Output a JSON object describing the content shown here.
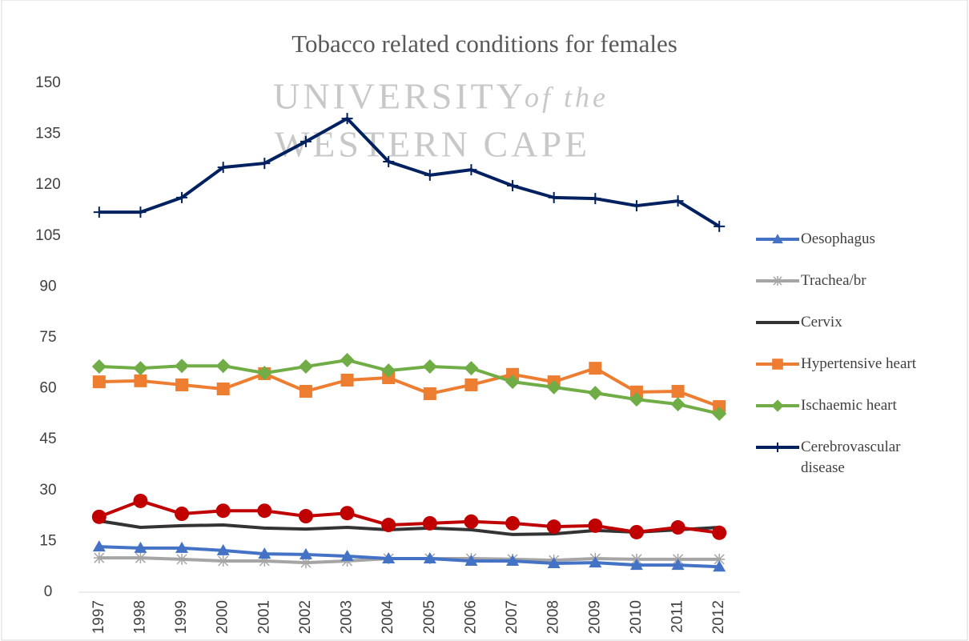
{
  "chart_data": {
    "type": "line",
    "title": "Tobacco related conditions for females",
    "watermark": [
      "UNIVERSITY",
      "of the",
      "WESTERN CAPE"
    ],
    "categories": [
      "1997",
      "1998",
      "1999",
      "2000",
      "2001",
      "2002",
      "2003",
      "2004",
      "2005",
      "2006",
      "2007",
      "2008",
      "2009",
      "2010",
      "2011",
      "2012"
    ],
    "ylim": [
      0,
      150
    ],
    "yticks": [
      0,
      15,
      30,
      45,
      60,
      75,
      90,
      105,
      120,
      135,
      150
    ],
    "grid": false,
    "legend": "right",
    "series": [
      {
        "name": "Oesophagus",
        "color": "#4472c4",
        "marker": "triangle",
        "values": [
          13.4,
          13,
          13,
          12.3,
          11.3,
          11.1,
          10.6,
          9.9,
          9.9,
          9.2,
          9.2,
          8.5,
          8.7,
          8,
          8,
          7.5
        ]
      },
      {
        "name": "Trachea/br",
        "color": "#a5a5a5",
        "marker": "star",
        "values": [
          10.1,
          10.1,
          9.7,
          9.2,
          9.2,
          8.7,
          9.2,
          9.9,
          9.9,
          9.9,
          9.7,
          9.4,
          9.9,
          9.7,
          9.7,
          9.7
        ]
      },
      {
        "name": "Cervix",
        "color": "#333333",
        "marker": "none",
        "values": [
          21,
          19.1,
          19.6,
          19.8,
          18.9,
          18.6,
          19.1,
          18.4,
          18.9,
          18.4,
          17,
          17.2,
          18.2,
          17.7,
          18.4,
          19.1
        ]
      },
      {
        "name": "Hypertensive heart",
        "color": "#ed7d31",
        "marker": "square",
        "values": [
          62,
          62.3,
          61.1,
          59.9,
          64.4,
          59.2,
          62.5,
          63.2,
          58.5,
          61.1,
          64.2,
          62,
          66,
          59,
          59.2,
          54.7
        ]
      },
      {
        "name": "Ischaemic heart",
        "color": "#70ad47",
        "marker": "diamond",
        "values": [
          66.5,
          66,
          66.7,
          66.7,
          64.6,
          66.5,
          68.4,
          65.3,
          66.5,
          66,
          62,
          60.4,
          58.7,
          56.8,
          55.4,
          52.6
        ]
      },
      {
        "name": "Cerebrovascular disease",
        "color": "#002060",
        "marker": "plus",
        "values": [
          112,
          112,
          116.3,
          125.2,
          126.4,
          132.8,
          139.6,
          126.9,
          122.9,
          124.5,
          119.8,
          116.3,
          116,
          113.9,
          115.3,
          107.8
        ]
      },
      {
        "color": "#c00000",
        "marker": "circle",
        "values": [
          22.2,
          26.9,
          23.1,
          24,
          24,
          22.4,
          23.3,
          19.8,
          20.3,
          20.8,
          20.3,
          19.3,
          19.6,
          17.7,
          19.1,
          17.5
        ]
      }
    ]
  }
}
